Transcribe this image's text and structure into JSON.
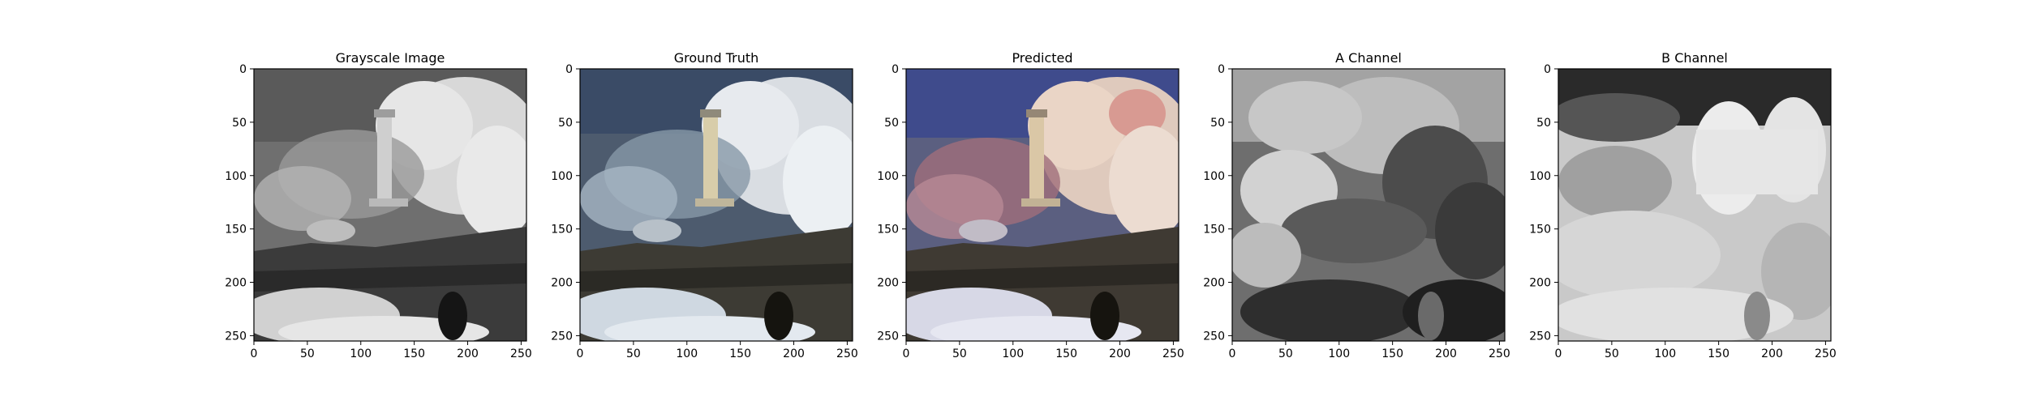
{
  "figure": {
    "panels": [
      {
        "id": "grayscale",
        "title": "Grayscale Image"
      },
      {
        "id": "ground-truth",
        "title": "Ground Truth"
      },
      {
        "id": "predicted",
        "title": "Predicted"
      },
      {
        "id": "a-channel",
        "title": "A Channel"
      },
      {
        "id": "b-channel",
        "title": "B Channel"
      }
    ]
  },
  "chart_data": [
    {
      "type": "image",
      "title": "Grayscale Image",
      "xlim": [
        0,
        255
      ],
      "ylim": [
        255,
        0
      ],
      "xticks": [
        0,
        50,
        100,
        150,
        200,
        250
      ],
      "yticks": [
        0,
        50,
        100,
        150,
        200,
        250
      ],
      "colormap": "gray"
    },
    {
      "type": "image",
      "title": "Ground Truth",
      "xlim": [
        0,
        255
      ],
      "ylim": [
        255,
        0
      ],
      "xticks": [
        0,
        50,
        100,
        150,
        200,
        250
      ],
      "yticks": [
        0,
        50,
        100,
        150,
        200,
        250
      ],
      "colormap": "rgb"
    },
    {
      "type": "image",
      "title": "Predicted",
      "xlim": [
        0,
        255
      ],
      "ylim": [
        255,
        0
      ],
      "xticks": [
        0,
        50,
        100,
        150,
        200,
        250
      ],
      "yticks": [
        0,
        50,
        100,
        150,
        200,
        250
      ],
      "colormap": "rgb"
    },
    {
      "type": "image",
      "title": "A Channel",
      "xlim": [
        0,
        255
      ],
      "ylim": [
        255,
        0
      ],
      "xticks": [
        0,
        50,
        100,
        150,
        200,
        250
      ],
      "yticks": [
        0,
        50,
        100,
        150,
        200,
        250
      ],
      "colormap": "gray"
    },
    {
      "type": "image",
      "title": "B Channel",
      "xlim": [
        0,
        255
      ],
      "ylim": [
        255,
        0
      ],
      "xticks": [
        0,
        50,
        100,
        150,
        200,
        250
      ],
      "yticks": [
        0,
        50,
        100,
        150,
        200,
        250
      ],
      "colormap": "gray"
    }
  ]
}
